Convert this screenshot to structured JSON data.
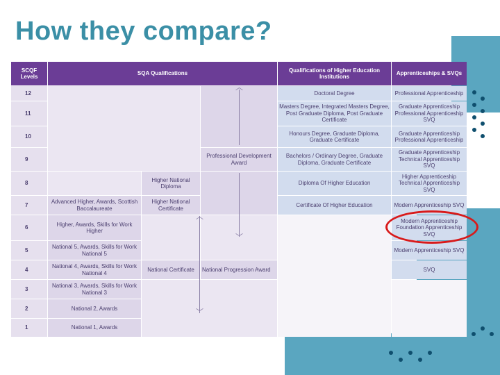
{
  "slide": {
    "title": "How they compare?"
  },
  "headers": {
    "scqf": "SCQF Levels",
    "sqa": "SQA Qualifications",
    "he": "Qualifications of Higher Education Institutions",
    "app": "Apprenticeships & SVQs"
  },
  "levels": [
    "12",
    "11",
    "10",
    "9",
    "8",
    "7",
    "6",
    "5",
    "4",
    "3",
    "2",
    "1"
  ],
  "sqa": {
    "pda": "Professional Development Award",
    "hnd": "Higher National Diploma",
    "hnc": "Higher National Certificate",
    "l7": "Advanced Higher, Awards, Scottish Baccalaureate",
    "l6": "Higher, Awards, Skills for Work Higher",
    "l5": "National 5, Awards, Skills for Work National 5",
    "l4": "National 4, Awards, Skills for Work National 4",
    "l3": "National 3, Awards, Skills for Work National 3",
    "l2": "National 2, Awards",
    "l1": "National 1, Awards",
    "nc": "National Certificate",
    "npa": "National Progression Award"
  },
  "he": {
    "l12": "Doctoral Degree",
    "l11": "Masters Degree, Integrated Masters Degree, Post Graduate Diploma, Post Graduate Certificate",
    "l10": "Honours Degree, Graduate Diploma, Graduate Certificate",
    "l9": "Bachelors / Ordinary Degree, Graduate Diploma, Graduate Certificate",
    "l8": "Diploma Of Higher Education",
    "l7": "Certificate Of Higher Education"
  },
  "app": {
    "l12": "Professional Apprenticeship",
    "l11": "Graduate Apprenticeship Professional Apprenticeship SVQ",
    "l10": "Graduate Apprenticeship Professional Apprenticeship",
    "l9": "Graduate Apprenticeship Technical Apprenticeship SVQ",
    "l8": "Higher Apprenticeship Technical Apprenticeship SVQ",
    "l7": "Modern Apprenticeship SVQ",
    "l6": "Modern Apprenticeship Foundation Apprenticeship SVQ",
    "l5": "Modern Apprenticeship SVQ",
    "l4": "SVQ"
  },
  "colors": {
    "title": "#3b8fa6",
    "header": "#6b3d96",
    "highlight": "#d81a1a"
  }
}
